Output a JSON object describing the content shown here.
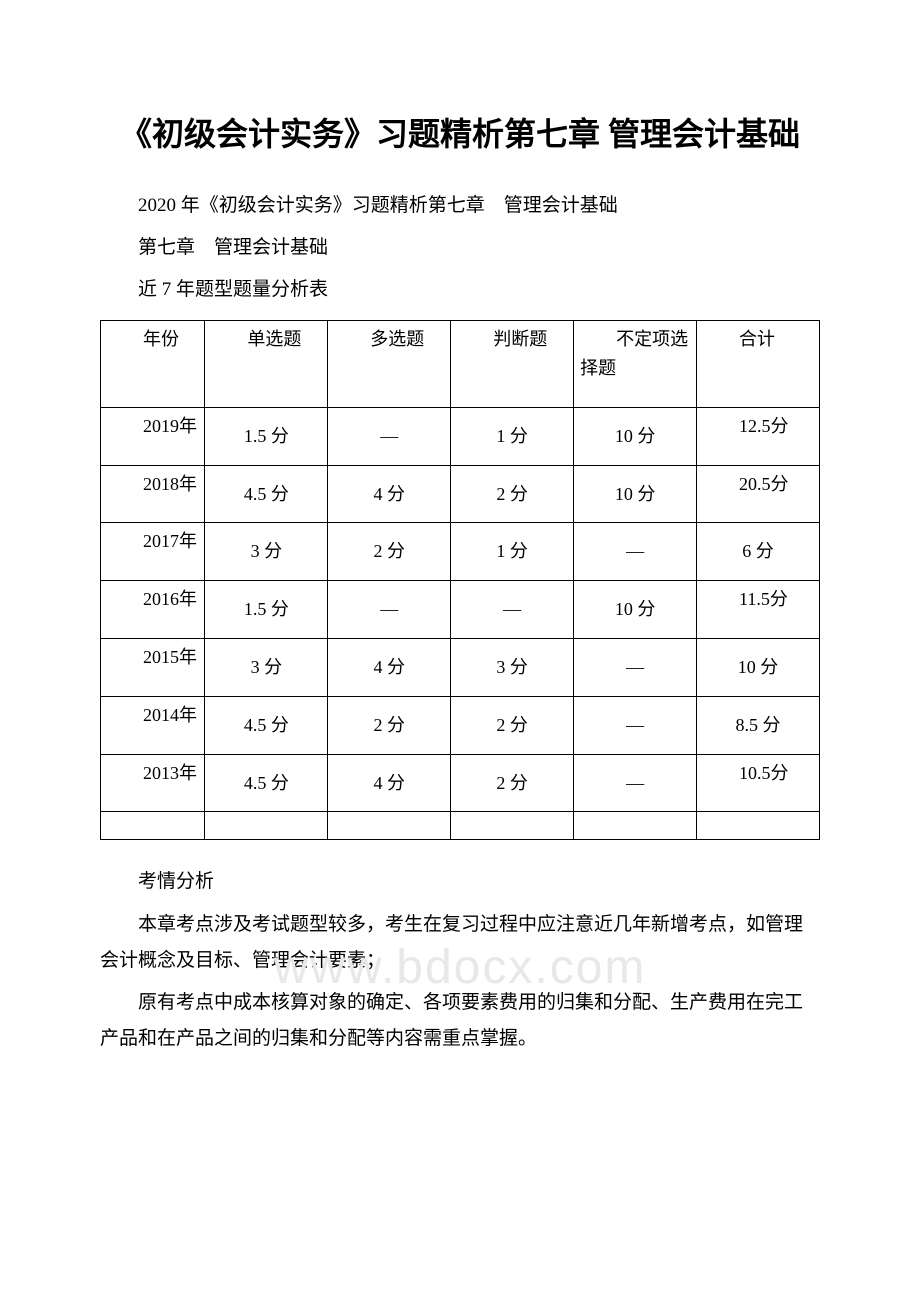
{
  "title": "《初级会计实务》习题精析第七章 管理会计基础",
  "line1": "2020 年《初级会计实务》习题精析第七章　管理会计基础",
  "line2": "第七章　管理会计基础",
  "line3": "近 7 年题型题量分析表",
  "watermark": "www.bdocx.com",
  "table": {
    "headers": {
      "year": "年份",
      "single": "单选题",
      "multi": "多选题",
      "judge": "判断题",
      "unfixed": "不定项选择题",
      "total": "合计"
    },
    "rows": [
      {
        "year": "2019年",
        "single": "1.5 分",
        "multi": "—",
        "judge": "1 分",
        "unfixed": "10 分",
        "total": "12.5分"
      },
      {
        "year": "2018年",
        "single": "4.5 分",
        "multi": "4 分",
        "judge": "2 分",
        "unfixed": "10 分",
        "total": "20.5分"
      },
      {
        "year": "2017年",
        "single": "3 分",
        "multi": "2 分",
        "judge": "1 分",
        "unfixed": "—",
        "total": "6 分"
      },
      {
        "year": "2016年",
        "single": "1.5 分",
        "multi": "—",
        "judge": "—",
        "unfixed": "10 分",
        "total": "11.5分"
      },
      {
        "year": "2015年",
        "single": "3 分",
        "multi": "4 分",
        "judge": "3 分",
        "unfixed": "—",
        "total": "10 分"
      },
      {
        "year": "2014年",
        "single": "4.5 分",
        "multi": "2 分",
        "judge": "2 分",
        "unfixed": "—",
        "total": "8.5 分"
      },
      {
        "year": "2013年",
        "single": "4.5 分",
        "multi": "4 分",
        "judge": "2 分",
        "unfixed": "—",
        "total": "10.5分"
      }
    ]
  },
  "para1": "考情分析",
  "para2": "本章考点涉及考试题型较多，考生在复习过程中应注意近几年新增考点，如管理会计概念及目标、管理会计要素；",
  "para3": "原有考点中成本核算对象的确定、各项要素费用的归集和分配、生产费用在完工产品和在产品之间的归集和分配等内容需重点掌握。"
}
